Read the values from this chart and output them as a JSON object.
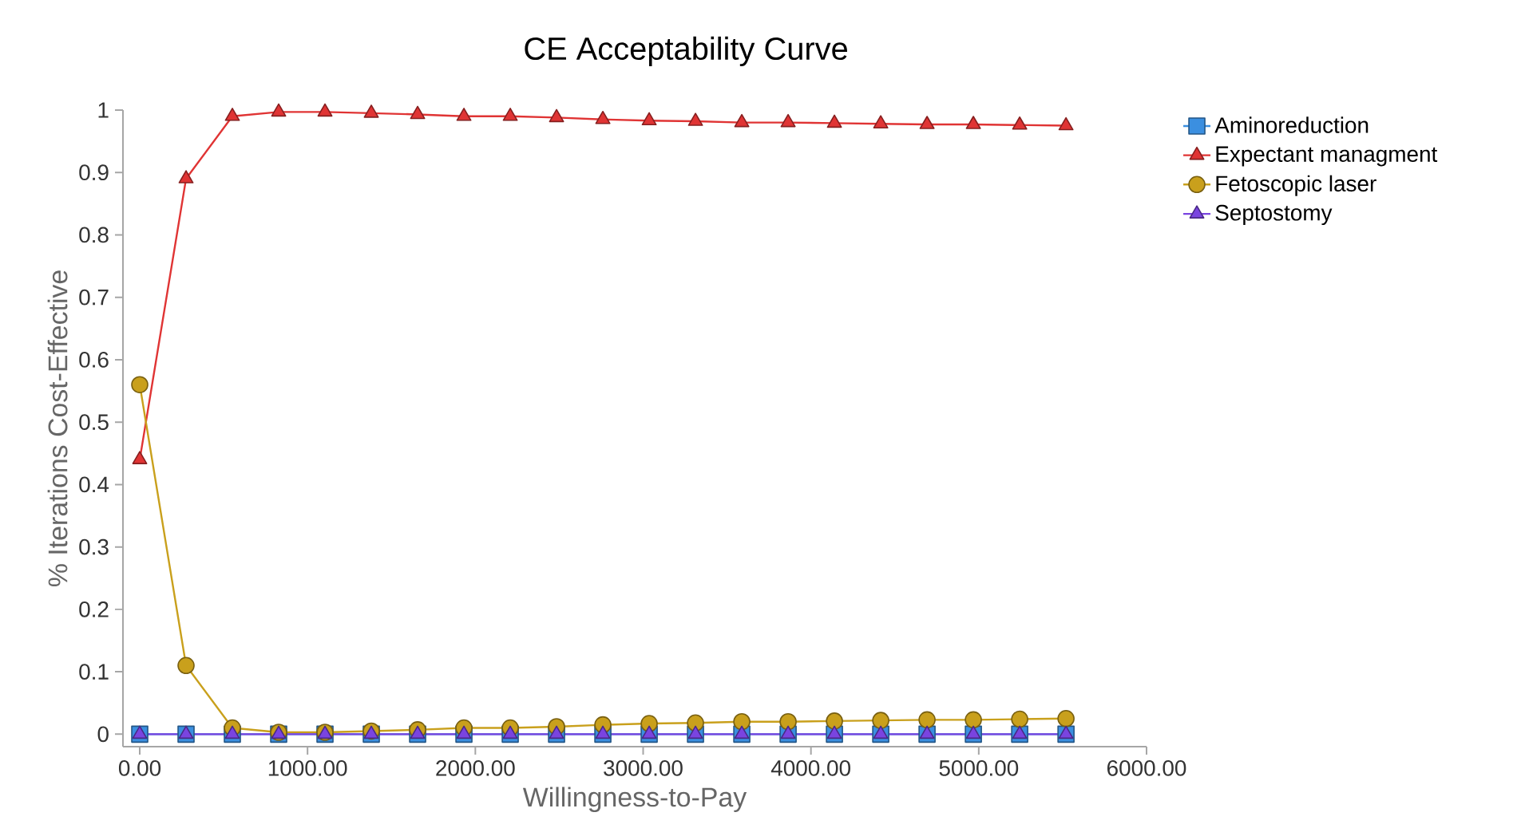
{
  "chart_data": {
    "type": "line",
    "title": "CE Acceptability Curve",
    "xlabel": "Willingness-to-Pay",
    "ylabel": "% Iterations Cost-Effective",
    "x": [
      0,
      276,
      552,
      828,
      1104,
      1380,
      1656,
      1932,
      2208,
      2484,
      2760,
      3036,
      3312,
      3588,
      3864,
      4140,
      4416,
      4692,
      4968,
      5244,
      5520
    ],
    "series": [
      {
        "name": "Aminoreduction",
        "color": "#3b8fe0",
        "marker": "square",
        "values": [
          0,
          0,
          0,
          0,
          0,
          0,
          0,
          0,
          0,
          0,
          0,
          0,
          0,
          0,
          0,
          0,
          0,
          0,
          0,
          0,
          0
        ]
      },
      {
        "name": "Expectant managment",
        "color": "#e03434",
        "marker": "triangle",
        "values": [
          0.44,
          0.89,
          0.99,
          0.997,
          0.997,
          0.995,
          0.993,
          0.99,
          0.99,
          0.988,
          0.985,
          0.983,
          0.982,
          0.98,
          0.98,
          0.979,
          0.978,
          0.977,
          0.977,
          0.976,
          0.975
        ]
      },
      {
        "name": "Fetoscopic laser",
        "color": "#c9a01c",
        "marker": "circle",
        "values": [
          0.56,
          0.11,
          0.01,
          0.003,
          0.003,
          0.005,
          0.007,
          0.01,
          0.01,
          0.012,
          0.015,
          0.017,
          0.018,
          0.02,
          0.02,
          0.021,
          0.022,
          0.023,
          0.023,
          0.024,
          0.025
        ]
      },
      {
        "name": "Septostomy",
        "color": "#7a44e0",
        "marker": "triangle",
        "values": [
          0,
          0,
          0,
          0,
          0,
          0,
          0,
          0,
          0,
          0,
          0,
          0,
          0,
          0,
          0,
          0,
          0,
          0,
          0,
          0,
          0
        ]
      }
    ],
    "xlim": [
      -100,
      6000
    ],
    "ylim": [
      -0.02,
      1
    ],
    "xticks": [
      {
        "value": 0,
        "label": "0.00"
      },
      {
        "value": 1000,
        "label": "1000.00"
      },
      {
        "value": 2000,
        "label": "2000.00"
      },
      {
        "value": 3000,
        "label": "3000.00"
      },
      {
        "value": 4000,
        "label": "4000.00"
      },
      {
        "value": 5000,
        "label": "5000.00"
      },
      {
        "value": 6000,
        "label": "6000.00"
      }
    ],
    "yticks": [
      0,
      0.1,
      0.2,
      0.3,
      0.4,
      0.5,
      0.6,
      0.7,
      0.8,
      0.9,
      1
    ],
    "legend": "top right",
    "line_style": "solid"
  }
}
